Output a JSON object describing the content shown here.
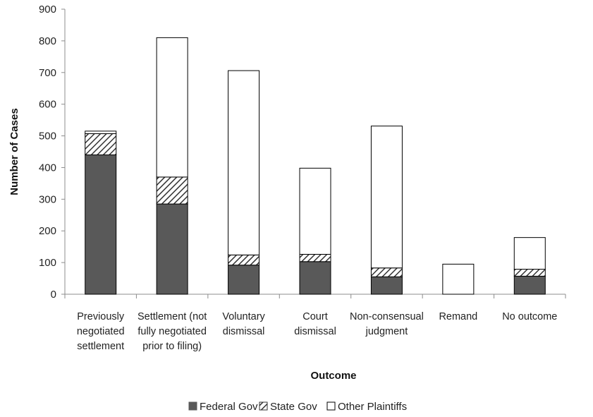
{
  "chart_data": {
    "type": "bar",
    "stacked": true,
    "title": "",
    "xlabel": "Outcome",
    "ylabel": "Number of Cases",
    "ylim": [
      0,
      900
    ],
    "yticks": [
      "0",
      "100",
      "200",
      "300",
      "400",
      "500",
      "600",
      "700",
      "800",
      "900"
    ],
    "grid": false,
    "legend_position": "bottom",
    "categories": [
      "Previously negotiated settlement",
      "Settlement (not fully negotiated prior to filing)",
      "Voluntary dismissal",
      "Court dismissal",
      "Non-consensual judgment",
      "Remand",
      "No outcome"
    ],
    "category_lines": [
      [
        "Previously",
        "negotiated",
        "settlement"
      ],
      [
        "Settlement (not",
        "fully negotiated",
        "prior to filing)"
      ],
      [
        "Voluntary",
        "dismissal"
      ],
      [
        "Court",
        "dismissal"
      ],
      [
        "Non-consensual",
        "judgment"
      ],
      [
        "Remand"
      ],
      [
        "No outcome"
      ]
    ],
    "series": [
      {
        "name": "Federal Gov",
        "values": [
          440,
          285,
          92,
          103,
          55,
          0,
          57
        ],
        "color": "#595959",
        "pattern": "solid"
      },
      {
        "name": "State Gov",
        "values": [
          67,
          85,
          32,
          23,
          28,
          0,
          22
        ],
        "color": "#333333",
        "pattern": "diagonal-hatch"
      },
      {
        "name": "Other Plaintiffs",
        "values": [
          8,
          440,
          582,
          272,
          448,
          95,
          100
        ],
        "color": "#ffffff",
        "pattern": "none"
      }
    ]
  }
}
